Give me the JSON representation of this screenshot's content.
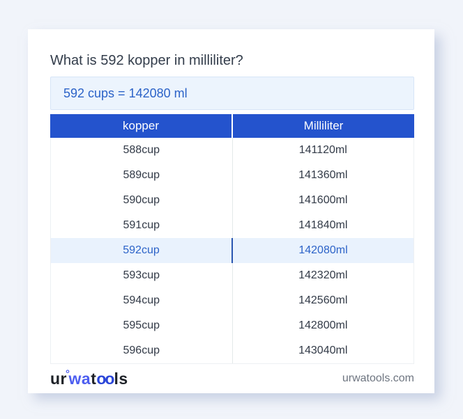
{
  "title": "What is 592 kopper in milliliter?",
  "answer": {
    "text": "592 cups = 142080 ml"
  },
  "table": {
    "headers": [
      "kopper",
      "Milliliter"
    ],
    "highlight_index": 4,
    "rows": [
      {
        "kopper": "588cup",
        "ml": "141120ml"
      },
      {
        "kopper": "589cup",
        "ml": "141360ml"
      },
      {
        "kopper": "590cup",
        "ml": "141600ml"
      },
      {
        "kopper": "591cup",
        "ml": "141840ml"
      },
      {
        "kopper": "592cup",
        "ml": "142080ml"
      },
      {
        "kopper": "593cup",
        "ml": "142320ml"
      },
      {
        "kopper": "594cup",
        "ml": "142560ml"
      },
      {
        "kopper": "595cup",
        "ml": "142800ml"
      },
      {
        "kopper": "596cup",
        "ml": "143040ml"
      }
    ]
  },
  "footer": {
    "logo": {
      "part1": "ur",
      "ring": "°",
      "part2": "wa",
      "part3": "t",
      "part4": "oo",
      "part5": "ls"
    },
    "domain": "urwatools.com"
  },
  "colors": {
    "page_background": "#f1f4fa",
    "card_background": "#ffffff",
    "header_blue": "#2453cd",
    "answer_box_bg": "#ecf4fd",
    "answer_text": "#2c63c8",
    "highlight_row_bg": "#e9f2fd",
    "highlight_text": "#2c63c8",
    "body_text": "#323a47",
    "domain_text": "#6e7580",
    "logo_blue": "#4d5ef0"
  }
}
